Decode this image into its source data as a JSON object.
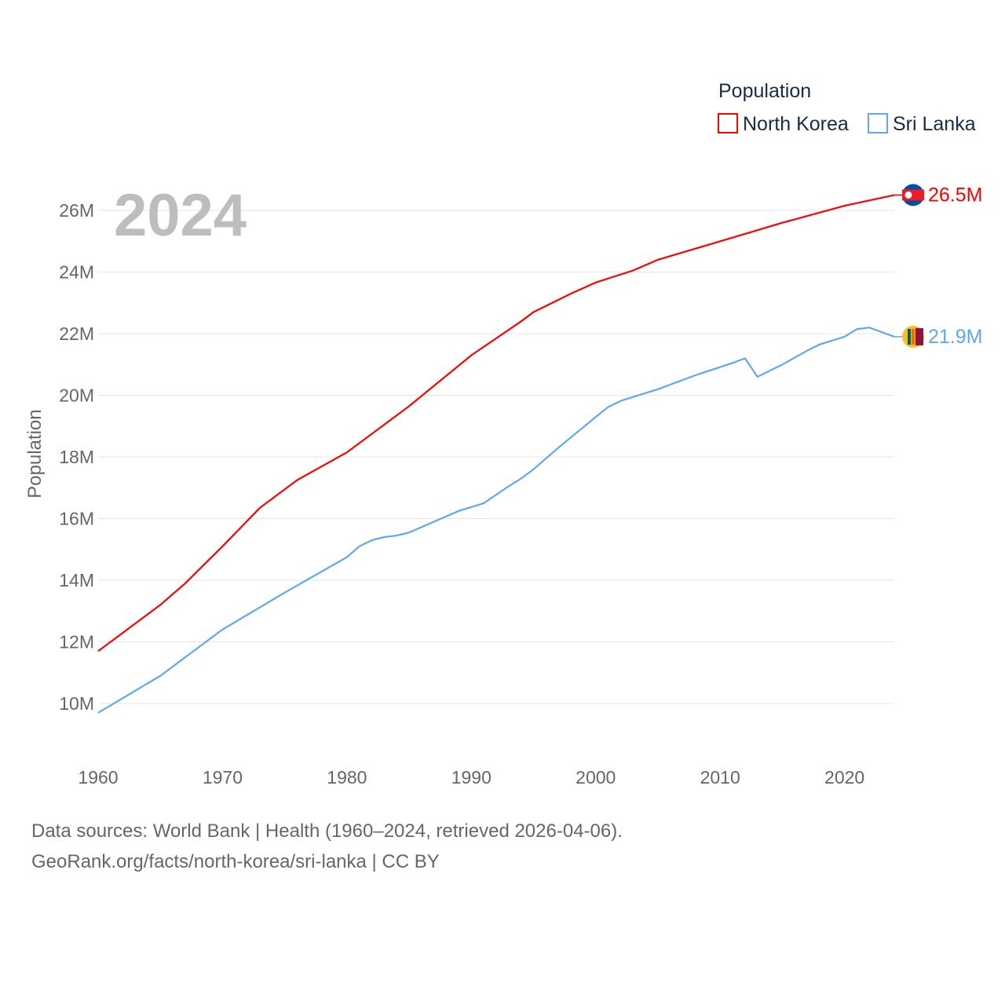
{
  "chart_data": {
    "type": "line",
    "year_label": "2024",
    "ylabel": "Population",
    "legend_title": "Population",
    "legend_position": "top-right",
    "xlim": [
      1960,
      2024
    ],
    "ylim": [
      10,
      26
    ],
    "x_ticks": [
      1960,
      1970,
      1980,
      1990,
      2000,
      2010,
      2020
    ],
    "y_ticks": [
      10,
      12,
      14,
      16,
      18,
      20,
      22,
      24,
      26
    ],
    "y_tick_labels": [
      "10M",
      "12M",
      "14M",
      "16M",
      "18M",
      "20M",
      "22M",
      "24M",
      "26M"
    ],
    "grid": true,
    "series": [
      {
        "name": "North Korea",
        "color": "#ff0000",
        "end_label": "26.5M",
        "points": [
          [
            1960,
            11.7
          ],
          [
            1962,
            12.3
          ],
          [
            1965,
            13.2
          ],
          [
            1967,
            13.9
          ],
          [
            1970,
            15.1
          ],
          [
            1973,
            16.35
          ],
          [
            1976,
            17.25
          ],
          [
            1980,
            18.15
          ],
          [
            1985,
            19.65
          ],
          [
            1990,
            21.3
          ],
          [
            1994,
            22.4
          ],
          [
            1995,
            22.7
          ],
          [
            1998,
            23.3
          ],
          [
            2000,
            23.66
          ],
          [
            2003,
            24.05
          ],
          [
            2005,
            24.4
          ],
          [
            2010,
            25.0
          ],
          [
            2015,
            25.6
          ],
          [
            2020,
            26.15
          ],
          [
            2024,
            26.5
          ]
        ]
      },
      {
        "name": "Sri Lanka",
        "color": "#5ea8ef",
        "end_label": "21.9M",
        "points": [
          [
            1960,
            9.7
          ],
          [
            1965,
            10.9
          ],
          [
            1970,
            12.4
          ],
          [
            1975,
            13.6
          ],
          [
            1980,
            14.75
          ],
          [
            1981,
            15.1
          ],
          [
            1982,
            15.3
          ],
          [
            1983,
            15.4
          ],
          [
            1984,
            15.45
          ],
          [
            1985,
            15.55
          ],
          [
            1987,
            15.9
          ],
          [
            1989,
            16.25
          ],
          [
            1991,
            16.5
          ],
          [
            1993,
            17.05
          ],
          [
            1994,
            17.3
          ],
          [
            1995,
            17.6
          ],
          [
            1997,
            18.3
          ],
          [
            2000,
            19.3
          ],
          [
            2001,
            19.62
          ],
          [
            2002,
            19.82
          ],
          [
            2005,
            20.2
          ],
          [
            2008,
            20.65
          ],
          [
            2011,
            21.05
          ],
          [
            2012,
            21.2
          ],
          [
            2013,
            20.6
          ],
          [
            2015,
            21.0
          ],
          [
            2017,
            21.45
          ],
          [
            2018,
            21.65
          ],
          [
            2020,
            21.9
          ],
          [
            2021,
            22.15
          ],
          [
            2022,
            22.2
          ],
          [
            2024,
            21.9
          ]
        ]
      }
    ]
  },
  "footer": {
    "line1": "Data sources: World Bank | Health (1960–2024, retrieved 2026-04-06).",
    "line2": "GeoRank.org/facts/north-korea/sri-lanka | CC BY"
  }
}
